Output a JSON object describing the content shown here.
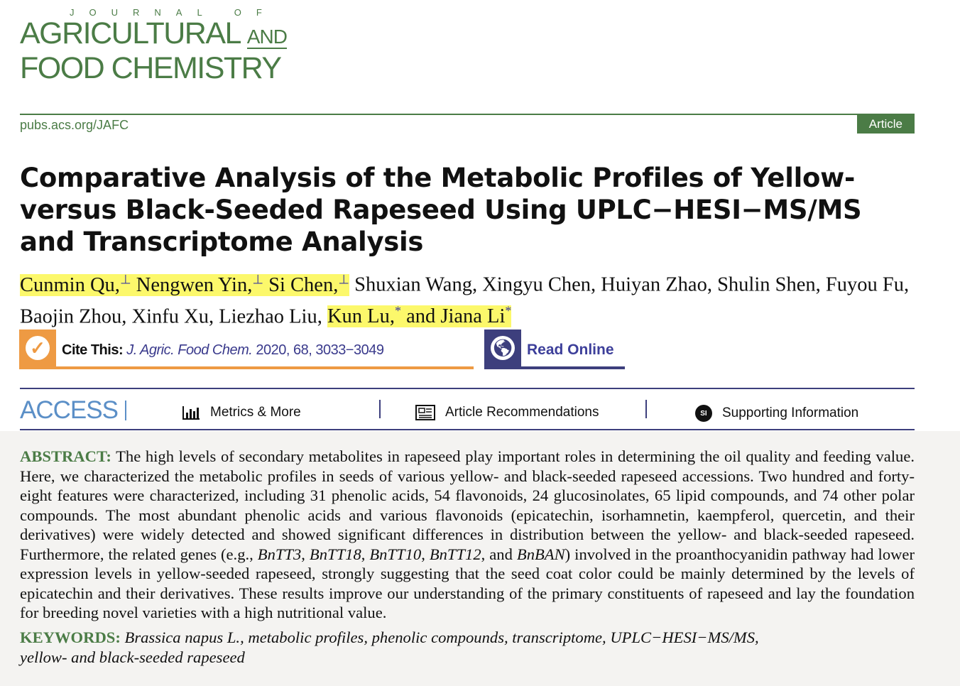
{
  "journal": {
    "logo_line0": "JOURNAL OF",
    "logo_line1": "AGRICULTURAL",
    "logo_and": "AND",
    "logo_line2": "FOOD CHEMISTRY",
    "url": "pubs.acs.org/JAFC",
    "article_type": "Article"
  },
  "title": "Comparative Analysis of the Metabolic Profiles of Yellow- versus Black-Seeded Rapeseed Using UPLC−HESI−MS/MS and Transcriptome Analysis",
  "authors": {
    "highlighted_first": [
      "Cunmin Qu,",
      "Nengwen Yin,",
      "Si Chen,"
    ],
    "equal_mark": "⊥",
    "middle": " Shuxian Wang, Xingyu Chen, Huiyan Zhao, Shulin Shen, Fuyou Fu, Baojin Zhou, Xinfu Xu, Liezhao Liu, ",
    "corresponding_1": "Kun Lu,",
    "and": " and ",
    "corresponding_2": "Jiana Li",
    "corr_mark": "*"
  },
  "cite": {
    "label": "Cite This:",
    "journal": "J. Agric. Food Chem.",
    "details": " 2020, 68, 3033−3049"
  },
  "read_online": "Read Online",
  "access": {
    "label": "ACCESS",
    "tabs": [
      {
        "label": "Metrics & More",
        "icon": "bar-chart-icon"
      },
      {
        "label": "Article Recommendations",
        "icon": "newspaper-icon"
      },
      {
        "label": "Supporting Information",
        "icon": "si-icon",
        "icon_text": "SI"
      }
    ]
  },
  "abstract": {
    "label": "ABSTRACT:",
    "p1": " The high levels of secondary metabolites in rapeseed play important roles in determining the oil quality and feeding value. Here, we characterized the metabolic profiles in seeds of various yellow- and black-seeded rapeseed accessions. Two hundred and forty-eight features were characterized, including 31 phenolic acids, 54 flavonoids, 24 glucosinolates, 65 lipid compounds, and 74 other polar compounds. The most abundant phenolic acids and various flavonoids (epicatechin, isorhamnetin, kaempferol, quercetin, and their derivatives) were widely detected and showed significant differences in distribution between the yellow- and black-seeded rapeseed. Furthermore, the related genes (e.g., ",
    "genes": [
      "BnTT3",
      "BnTT18",
      "BnTT10",
      "BnTT12",
      "BnBAN"
    ],
    "p2": ") involved in the proanthocyanidin pathway had lower expression levels in yellow-seeded rapeseed, strongly suggesting that the seed coat color could be mainly determined by the levels of epicatechin and their derivatives. These results improve our understanding of the primary constituents of rapeseed and lay the foundation for breeding novel varieties with a high nutritional value."
  },
  "keywords": {
    "label": "KEYWORDS:",
    "text": "Brassica napus L., metabolic profiles, phenolic compounds, transcriptome, UPLC−HESI−MS/MS, yellow- and black-seeded rapeseed"
  },
  "colors": {
    "journal_green": "#4b7c46",
    "cite_orange": "#ee9a43",
    "read_navy": "#3d3f7d",
    "highlight": "#fcf86b"
  }
}
